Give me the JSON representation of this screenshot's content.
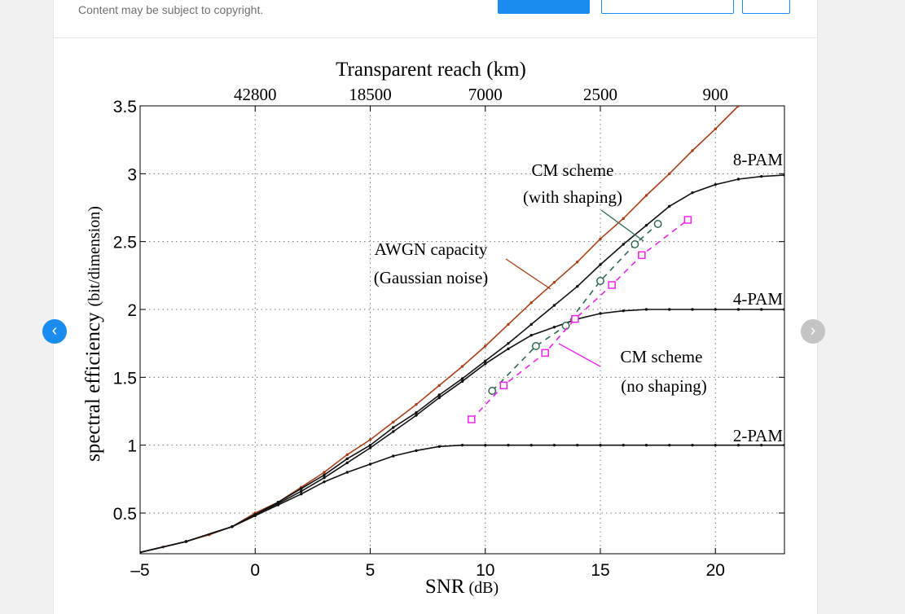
{
  "header": {
    "copyright_note": "Content may be subject to copyright."
  },
  "nav": {
    "prev_icon": "‹",
    "next_icon": "›"
  },
  "colors": {
    "awgn": "#a8401a",
    "pam": "#111111",
    "cm_shaping": "#2e6a4f",
    "cm_no_shaping": "#ee22ee"
  },
  "chart_data": {
    "type": "line",
    "title": "",
    "xlabel": "SNR",
    "xlabel_unit": "(dB)",
    "ylabel": "spectral efficiency",
    "ylabel_unit": "(bit/dimension)",
    "xlim": [
      -5,
      23
    ],
    "ylim": [
      0.2,
      3.5
    ],
    "x_ticks": [
      -5,
      0,
      5,
      10,
      15,
      20
    ],
    "x_tick_labels": [
      "–5",
      "0",
      "5",
      "10",
      "15",
      "20"
    ],
    "y_ticks": [
      0.5,
      1,
      1.5,
      2,
      2.5,
      3,
      3.5
    ],
    "y_tick_labels": [
      "0.5",
      "1",
      "1.5",
      "2",
      "2.5",
      "3",
      "3.5"
    ],
    "top_axis": {
      "label": "Transparent reach (km)",
      "ticks": [
        0,
        5,
        10,
        15,
        20
      ],
      "tick_labels": [
        "42800",
        "18500",
        "7000",
        "2500",
        "900"
      ]
    },
    "grid": true,
    "series": [
      {
        "name": "AWGN capacity",
        "style": "solid",
        "marker": "dot",
        "x": [
          -5,
          -4,
          -3,
          -2,
          -1,
          0,
          1,
          2,
          3,
          4,
          5,
          6,
          7,
          8,
          9,
          10,
          11,
          12,
          13,
          14,
          15,
          16,
          17,
          18,
          19,
          20,
          21
        ],
        "y": [
          0.21,
          0.25,
          0.29,
          0.34,
          0.4,
          0.5,
          0.58,
          0.69,
          0.8,
          0.93,
          1.04,
          1.17,
          1.3,
          1.44,
          1.58,
          1.73,
          1.89,
          2.05,
          2.2,
          2.35,
          2.52,
          2.67,
          2.84,
          3.0,
          3.17,
          3.33,
          3.5
        ]
      },
      {
        "name": "8-PAM",
        "style": "solid",
        "marker": "dot",
        "x": [
          -5,
          -3,
          -1,
          0,
          1,
          2,
          3,
          4,
          5,
          6,
          7,
          8,
          9,
          10,
          11,
          12,
          13,
          14,
          15,
          16,
          17,
          18,
          19,
          20,
          21,
          22,
          23
        ],
        "y": [
          0.21,
          0.29,
          0.4,
          0.49,
          0.58,
          0.68,
          0.78,
          0.9,
          1.0,
          1.13,
          1.24,
          1.37,
          1.49,
          1.62,
          1.75,
          1.89,
          2.03,
          2.17,
          2.33,
          2.48,
          2.62,
          2.76,
          2.86,
          2.92,
          2.96,
          2.98,
          2.99
        ]
      },
      {
        "name": "4-PAM",
        "style": "solid",
        "marker": "dot",
        "x": [
          -5,
          -3,
          -1,
          0,
          1,
          2,
          3,
          4,
          5,
          6,
          7,
          8,
          9,
          10,
          11,
          12,
          13,
          14,
          15,
          16,
          17,
          18,
          19,
          20,
          21,
          22,
          23
        ],
        "y": [
          0.21,
          0.29,
          0.4,
          0.49,
          0.57,
          0.66,
          0.76,
          0.87,
          0.98,
          1.1,
          1.22,
          1.35,
          1.47,
          1.6,
          1.71,
          1.81,
          1.87,
          1.93,
          1.97,
          1.99,
          2.0,
          2.0,
          2.0,
          2.0,
          2.0,
          2.0,
          2.0
        ]
      },
      {
        "name": "2-PAM",
        "style": "solid",
        "marker": "dot",
        "x": [
          -5,
          -3,
          -1,
          0,
          1,
          2,
          3,
          4,
          5,
          6,
          7,
          8,
          9,
          10,
          11,
          12,
          13,
          14,
          15,
          16,
          17,
          18,
          19,
          20,
          21,
          22,
          23
        ],
        "y": [
          0.21,
          0.29,
          0.4,
          0.48,
          0.56,
          0.64,
          0.73,
          0.8,
          0.86,
          0.92,
          0.96,
          0.99,
          1.0,
          1.0,
          1.0,
          1.0,
          1.0,
          1.0,
          1.0,
          1.0,
          1.0,
          1.0,
          1.0,
          1.0,
          1.0,
          1.0,
          1.0
        ]
      },
      {
        "name": "CM scheme (with shaping)",
        "style": "dashed",
        "marker": "circle",
        "x": [
          10.3,
          12.2,
          13.5,
          15.0,
          16.5,
          17.5
        ],
        "y": [
          1.4,
          1.73,
          1.88,
          2.21,
          2.48,
          2.63
        ]
      },
      {
        "name": "CM scheme (no shaping)",
        "style": "dashed",
        "marker": "square",
        "x": [
          9.4,
          10.8,
          12.6,
          13.9,
          15.5,
          16.8,
          18.8
        ],
        "y": [
          1.19,
          1.44,
          1.68,
          1.93,
          2.18,
          2.4,
          2.66
        ]
      }
    ],
    "annotations": {
      "awgn_line1": "AWGN capacity",
      "awgn_line2": "(Gaussian noise)",
      "cm_shaping_line1": "CM scheme",
      "cm_shaping_line2": "(with shaping)",
      "cm_noshaping_line1": "CM scheme",
      "cm_noshaping_line2": "(no shaping)",
      "pam8": "8-PAM",
      "pam4": "4-PAM",
      "pam2": "2-PAM"
    }
  }
}
